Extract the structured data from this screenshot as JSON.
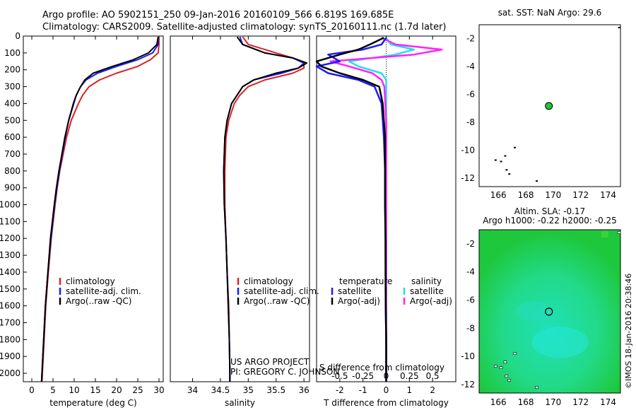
{
  "titles": {
    "line1": "Argo profile: AO 5902151_250 09-Jan-2016 20160109_566 6.819S 169.685E",
    "line2": "Climatology: CARS2009. Satellite-adjusted climatology: synTS_20160111.nc (1.7d later)"
  },
  "colors": {
    "clim": "#e02020",
    "sat": "#1a1aff",
    "argo": "#000000",
    "sat_s": "#22e0e8",
    "argo_s": "#ff22ff",
    "ocean": "#1ec83c"
  },
  "depth_axis": {
    "min": 0,
    "max": 2050,
    "ticks": [
      0,
      100,
      200,
      300,
      400,
      500,
      600,
      700,
      800,
      900,
      1000,
      1100,
      1200,
      1300,
      1400,
      1500,
      1600,
      1700,
      1800,
      1900,
      2000
    ]
  },
  "chart_data": [
    {
      "type": "line",
      "panel": "temperature",
      "xlabel": "temperature (deg C)",
      "xlim": [
        -2,
        31
      ],
      "xticks": [
        0,
        5,
        10,
        15,
        20,
        25,
        30
      ],
      "legend": [
        "climatology",
        "satellite-adj. clim.",
        "Argo(..raw -QC)"
      ],
      "depth": [
        5,
        50,
        100,
        140,
        180,
        220,
        260,
        300,
        350,
        400,
        500,
        600,
        700,
        800,
        900,
        1000,
        1200,
        1400,
        1600,
        1800,
        2000,
        2050
      ],
      "series": [
        {
          "name": "climatology",
          "values": [
            30,
            30,
            29.8,
            28,
            25,
            20,
            16,
            13.5,
            12,
            11,
            9.3,
            8.2,
            7.4,
            6.6,
            6,
            5.5,
            4.6,
            3.9,
            3.3,
            2.9,
            2.5,
            2.4
          ]
        },
        {
          "name": "satellite-adj. clim.",
          "values": [
            29.8,
            29.8,
            28.5,
            25,
            20,
            15.5,
            12.8,
            11.5,
            10.5,
            9.9,
            8.7,
            7.9,
            7.2,
            6.5,
            5.9,
            5.4,
            4.5,
            3.8,
            3.2,
            2.8,
            2.4,
            2.3
          ]
        },
        {
          "name": "Argo(..raw -QC)",
          "values": [
            29.8,
            29.5,
            27.5,
            24,
            19,
            14.5,
            12.5,
            11.5,
            10.5,
            9.8,
            8.7,
            7.8,
            7.1,
            6.4,
            5.8,
            5.3,
            4.4,
            3.8,
            3.2,
            2.8,
            2.4,
            2.3
          ]
        }
      ]
    },
    {
      "type": "line",
      "panel": "salinity",
      "xlabel": "salinity",
      "xlim": [
        33.6,
        36.1
      ],
      "xticks": [
        34,
        34.5,
        35,
        35.5,
        36
      ],
      "legend": [
        "climatology",
        "satellite-adj. clim.",
        "Argo(..raw -QC)"
      ],
      "annotation": [
        "US ARGO PROJECT",
        "PI: GREGORY C. JOHNSON"
      ],
      "depth": [
        5,
        50,
        100,
        130,
        160,
        190,
        220,
        260,
        300,
        350,
        400,
        500,
        600,
        800,
        1000,
        1200,
        1400,
        1600,
        1800,
        2000,
        2050
      ],
      "series": [
        {
          "name": "climatology",
          "values": [
            34.9,
            35.0,
            35.5,
            35.8,
            36.0,
            36.0,
            35.8,
            35.3,
            35.0,
            34.85,
            34.75,
            34.65,
            34.6,
            34.58,
            34.58,
            34.6,
            34.62,
            34.65,
            34.66,
            34.67,
            34.67
          ]
        },
        {
          "name": "satellite-adj. clim.",
          "values": [
            34.85,
            34.9,
            35.3,
            35.8,
            36.0,
            35.9,
            35.6,
            35.1,
            34.9,
            34.8,
            34.7,
            34.62,
            34.58,
            34.56,
            34.57,
            34.6,
            34.62,
            34.64,
            34.66,
            34.67,
            34.67
          ]
        },
        {
          "name": "Argo(..raw -QC)",
          "values": [
            34.8,
            34.9,
            35.3,
            35.8,
            36.05,
            35.9,
            35.5,
            35.1,
            34.9,
            34.8,
            34.7,
            34.62,
            34.58,
            34.56,
            34.57,
            34.6,
            34.62,
            34.64,
            34.66,
            34.67,
            34.67
          ]
        }
      ]
    },
    {
      "type": "line",
      "panel": "difference",
      "xlabel": "T difference from climatology",
      "xlim": [
        -3,
        3
      ],
      "xticks": [
        -2,
        -1,
        0,
        1,
        2
      ],
      "x2label": "S difference from climatology",
      "x2lim": [
        -0.75,
        0.75
      ],
      "x2ticks": [
        -0.5,
        -0.25,
        0,
        0.25,
        0.5
      ],
      "legend_t": [
        "temperature",
        "satellite",
        "Argo(-adj)"
      ],
      "legend_s": [
        "salinity",
        "satellite",
        "Argo(-adj)"
      ],
      "depth": [
        10,
        50,
        80,
        110,
        150,
        180,
        220,
        260,
        300,
        400,
        500,
        600,
        800,
        1000,
        1200,
        1400,
        1600,
        1800,
        2000,
        2050
      ],
      "series": [
        {
          "name": "T satellite",
          "values": [
            0,
            -0.2,
            -1,
            -2.5,
            -2,
            -3,
            -2.5,
            -1.2,
            -0.5,
            -0.2,
            -0.15,
            -0.1,
            -0.05,
            -0.05,
            -0.03,
            -0.02,
            -0.02,
            0,
            0,
            0
          ]
        },
        {
          "name": "T Argo(-adj)",
          "values": [
            -0.1,
            -0.7,
            -1.2,
            -2,
            -3,
            -2.8,
            -2,
            -1,
            -0.3,
            -0.15,
            -0.1,
            -0.05,
            -0.05,
            -0.05,
            -0.03,
            -0.03,
            -0.02,
            0,
            0,
            0
          ]
        },
        {
          "name": "S satellite",
          "values": [
            0,
            0.05,
            0.3,
            0.1,
            -0.4,
            -0.3,
            -0.05,
            0,
            0,
            0,
            0,
            0,
            -0.01,
            -0.01,
            0,
            0,
            0,
            0,
            0,
            0
          ]
        },
        {
          "name": "S Argo(-adj)",
          "values": [
            -0.05,
            0.1,
            0.6,
            0.3,
            -0.6,
            -0.4,
            -0.15,
            -0.05,
            -0.02,
            -0.01,
            0,
            0,
            0,
            0,
            0,
            0,
            0,
            0,
            0,
            0
          ]
        }
      ]
    },
    {
      "type": "scatter",
      "panel": "sst_map",
      "title": "sat. SST: NaN Argo: 29.6",
      "xlim": [
        164.6,
        174.9
      ],
      "ylim": [
        -12.6,
        -1
      ],
      "xticks": [
        166,
        168,
        170,
        172,
        174
      ],
      "yticks": [
        -2,
        -4,
        -6,
        -8,
        -10,
        -12
      ],
      "argo_position": {
        "lon": 169.685,
        "lat": -6.819
      }
    },
    {
      "type": "heatmap",
      "panel": "sla_map",
      "title1": "Altim. SLA: -0.17",
      "title2": "Argo h1000: -0.22 h2000: -0.25",
      "xlim": [
        164.6,
        174.9
      ],
      "ylim": [
        -12.6,
        -1
      ],
      "xticks": [
        166,
        168,
        170,
        172,
        174
      ],
      "yticks": [
        -2,
        -4,
        -6,
        -8,
        -10,
        -12
      ],
      "argo_position": {
        "lon": 169.685,
        "lat": -6.819
      }
    }
  ],
  "footer": {
    "imos_stamp": "©IMOS 18-Jan-2016 20:38:46"
  }
}
